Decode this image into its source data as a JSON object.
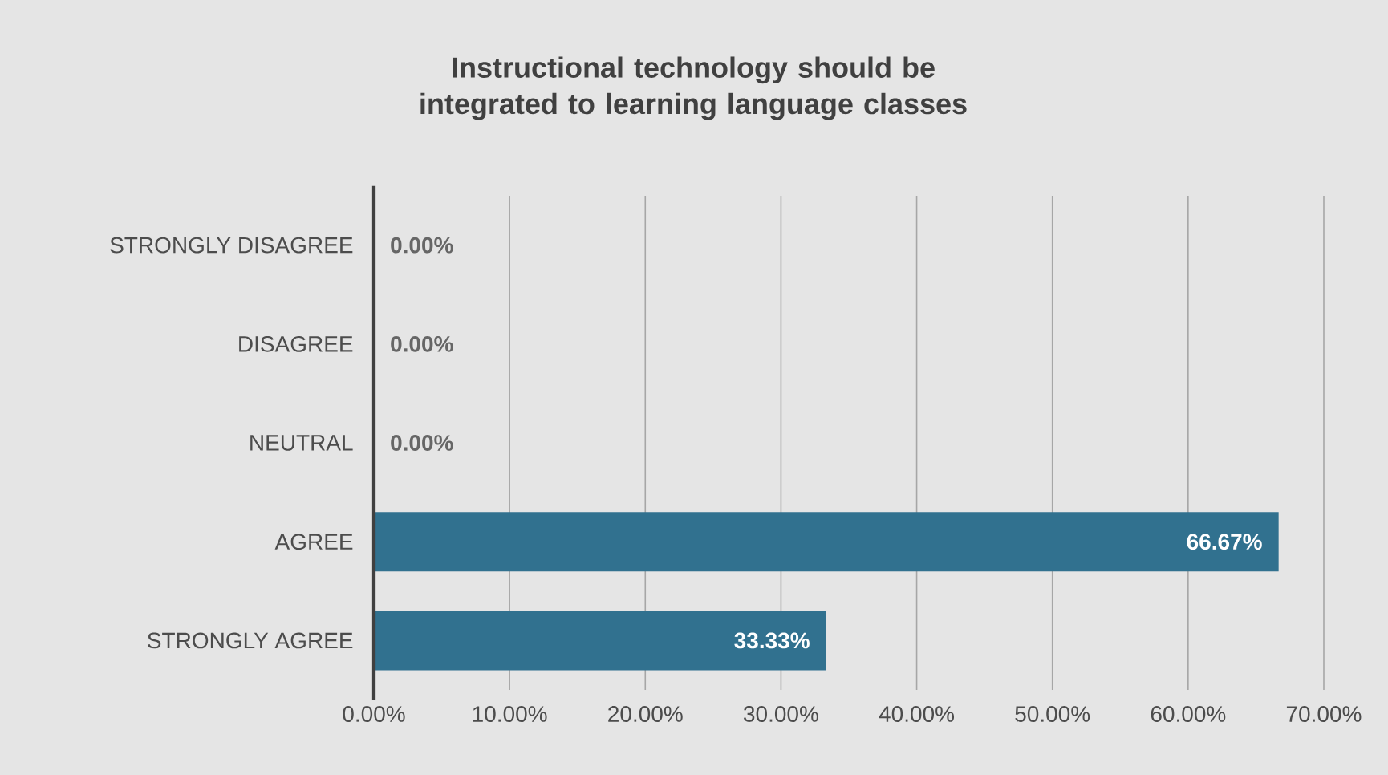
{
  "chart_data": {
    "type": "bar",
    "orientation": "horizontal",
    "title": "Instructional technology should be integrated to learning language classes",
    "categories": [
      "STRONGLY DISAGREE",
      "DISAGREE",
      "NEUTRAL",
      "AGREE",
      "STRONGLY AGREE"
    ],
    "values": [
      0,
      0,
      0,
      66.67,
      33.33
    ],
    "value_labels": [
      "0.00%",
      "0.00%",
      "0.00%",
      "66.67%",
      "33.33%"
    ],
    "color": "#31718f",
    "xlim": [
      0,
      70
    ],
    "xticks": [
      {
        "value": 0,
        "label": "0.00%"
      },
      {
        "value": 10,
        "label": "10.00%"
      },
      {
        "value": 20,
        "label": "20.00%"
      },
      {
        "value": 30,
        "label": "30.00%"
      },
      {
        "value": 40,
        "label": "40.00%"
      },
      {
        "value": 50,
        "label": "50.00%"
      },
      {
        "value": 60,
        "label": "60.00%"
      },
      {
        "value": 70,
        "label": "70.00%"
      }
    ],
    "grid": "x"
  }
}
